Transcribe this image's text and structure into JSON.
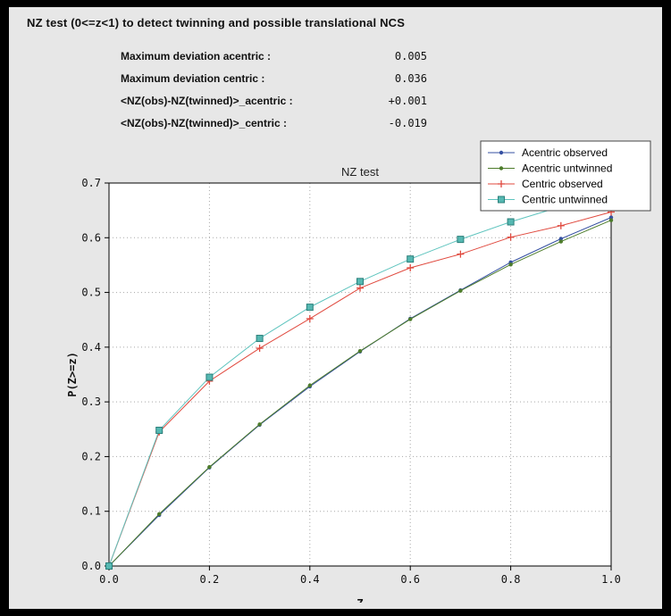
{
  "window": {
    "title": "NZ test (0<=z<1) to detect twinning and possible translational NCS"
  },
  "stats": [
    {
      "label": "Maximum deviation acentric :",
      "value": "0.005"
    },
    {
      "label": "Maximum deviation centric :",
      "value": "0.036"
    },
    {
      "label": "<NZ(obs)-NZ(twinned)>_acentric :",
      "value": "+0.001"
    },
    {
      "label": "<NZ(obs)-NZ(twinned)>_centric :",
      "value": "-0.019"
    }
  ],
  "chart_data": {
    "type": "line",
    "title": "NZ test",
    "xlabel": "Z",
    "ylabel": "P(Z>=z)",
    "xlim": [
      0.0,
      1.0
    ],
    "ylim": [
      0.0,
      0.7
    ],
    "x_ticks": [
      "0.0",
      "0.2",
      "0.4",
      "0.6",
      "0.8",
      "1.0"
    ],
    "y_ticks": [
      "0.0",
      "0.1",
      "0.2",
      "0.3",
      "0.4",
      "0.5",
      "0.6",
      "0.7"
    ],
    "grid": true,
    "legend_position": "top-right",
    "grid_color": "#a8a8a8",
    "x": [
      0.0,
      0.1,
      0.2,
      0.3,
      0.4,
      0.5,
      0.6,
      0.7,
      0.8,
      0.9,
      1.0
    ],
    "series": [
      {
        "name": "Acentric observed",
        "color": "#3550a2",
        "marker": "dot",
        "values": [
          0.0,
          0.093,
          0.18,
          0.258,
          0.328,
          0.392,
          0.452,
          0.504,
          0.555,
          0.598,
          0.637
        ]
      },
      {
        "name": "Acentric untwinned",
        "color": "#4d7c2b",
        "marker": "dot",
        "values": [
          0.0,
          0.095,
          0.181,
          0.259,
          0.33,
          0.393,
          0.451,
          0.503,
          0.551,
          0.593,
          0.632
        ]
      },
      {
        "name": "Centric observed",
        "color": "#e0493e",
        "marker": "plus",
        "values": [
          0.0,
          0.245,
          0.338,
          0.398,
          0.452,
          0.508,
          0.545,
          0.57,
          0.601,
          0.622,
          0.647
        ]
      },
      {
        "name": "Centric untwinned",
        "color": "#5ec4be",
        "marker": "square",
        "marker_fill": "#56b8b2",
        "marker_edge": "#2a7f7a",
        "values": [
          0.0,
          0.248,
          0.345,
          0.416,
          0.473,
          0.52,
          0.561,
          0.597,
          0.629,
          0.657,
          0.683
        ]
      }
    ]
  }
}
